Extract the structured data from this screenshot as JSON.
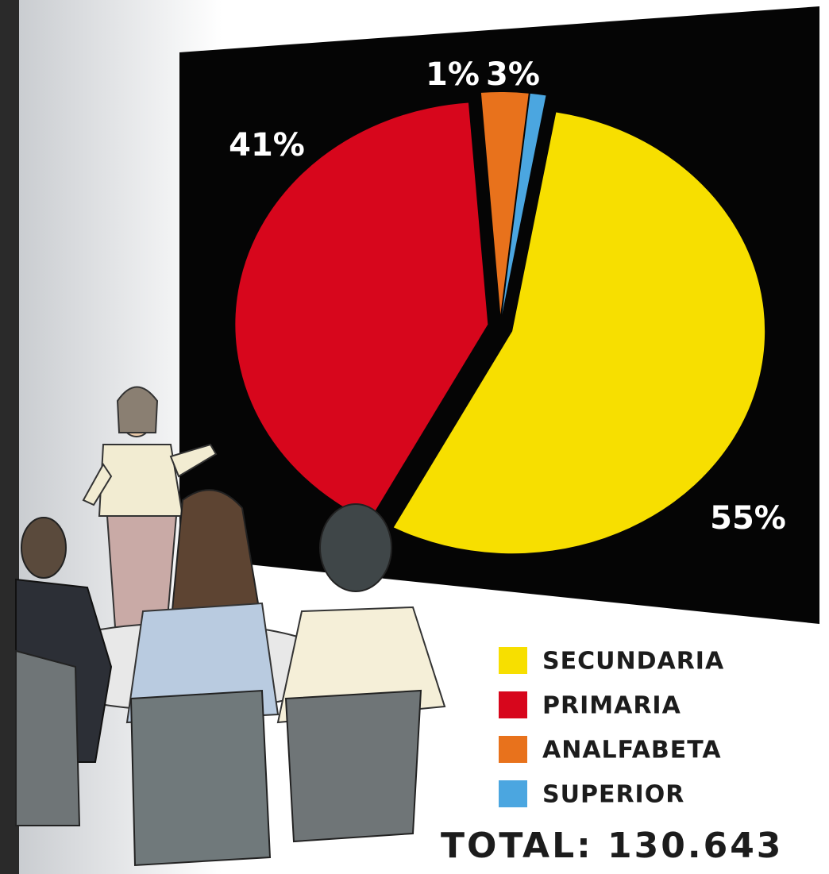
{
  "chart_data": {
    "type": "pie",
    "categories": [
      "SECUNDARIA",
      "PRIMARIA",
      "ANALFABETA",
      "SUPERIOR"
    ],
    "values": [
      55,
      41,
      3,
      1
    ],
    "value_labels": [
      "55%",
      "41%",
      "3%",
      "1%"
    ],
    "colors": [
      "#f7df00",
      "#d7061c",
      "#e8721c",
      "#4ba6e0"
    ],
    "annotation": "TOTAL: 130.643"
  }
}
